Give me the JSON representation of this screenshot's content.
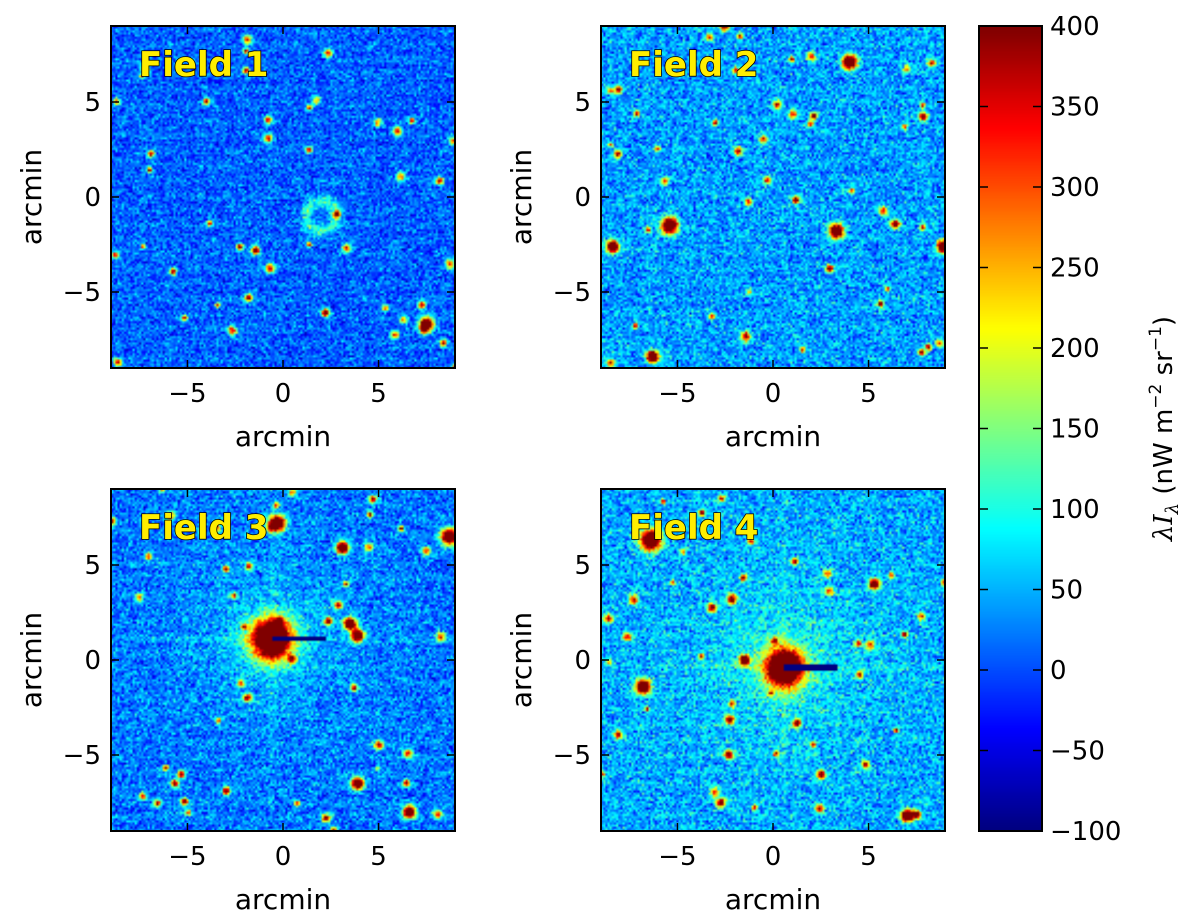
{
  "chart_data": [
    {
      "type": "heatmap",
      "title": "Field 1",
      "xlabel": "arcmin",
      "ylabel": "arcmin",
      "xlim": [
        -9,
        9
      ],
      "ylim": [
        -9,
        9
      ],
      "xticks": [
        -5,
        0,
        5
      ],
      "yticks": [
        -5,
        0,
        5
      ],
      "xtick_labels": [
        "−5",
        "0",
        "5"
      ],
      "ytick_labels": [
        "−5",
        "0",
        "5"
      ],
      "background_level": 10,
      "noise": 60,
      "bright_sources": [
        {
          "x": 2.0,
          "y": -1.0,
          "ring": true,
          "radius": 0.8,
          "peak": 110
        },
        {
          "x": 7.5,
          "y": -6.7,
          "peak": 400,
          "radius": 0.35
        }
      ]
    },
    {
      "type": "heatmap",
      "title": "Field 2",
      "xlabel": "arcmin",
      "ylabel": "arcmin",
      "xlim": [
        -9,
        9
      ],
      "ylim": [
        -9,
        9
      ],
      "xticks": [
        -5,
        0,
        5
      ],
      "yticks": [
        -5,
        0,
        5
      ],
      "xtick_labels": [
        "−5",
        "0",
        "5"
      ],
      "ytick_labels": [
        "−5",
        "0",
        "5"
      ],
      "background_level": 40,
      "noise": 70,
      "bright_sources": [
        {
          "x": 4.0,
          "y": 7.1,
          "peak": 400,
          "radius": 0.35
        },
        {
          "x": -5.4,
          "y": -1.5,
          "peak": 400,
          "radius": 0.4
        },
        {
          "x": 3.3,
          "y": -1.8,
          "peak": 400,
          "radius": 0.35
        },
        {
          "x": -8.4,
          "y": -2.6,
          "peak": 400,
          "radius": 0.3
        },
        {
          "x": 8.9,
          "y": -2.6,
          "peak": 400,
          "radius": 0.3
        },
        {
          "x": -6.3,
          "y": -8.4,
          "peak": 400,
          "radius": 0.3
        }
      ]
    },
    {
      "type": "heatmap",
      "title": "Field 3",
      "xlabel": "arcmin",
      "ylabel": "arcmin",
      "xlim": [
        -9,
        9
      ],
      "ylim": [
        -9,
        9
      ],
      "xticks": [
        -5,
        0,
        5
      ],
      "yticks": [
        -5,
        0,
        5
      ],
      "xtick_labels": [
        "−5",
        "0",
        "5"
      ],
      "ytick_labels": [
        "−5",
        "0",
        "5"
      ],
      "background_level": 20,
      "noise": 65,
      "bright_sources": [
        {
          "x": -0.6,
          "y": 1.1,
          "peak": 400,
          "radius": 1.0,
          "halo": 2.2,
          "streak": true
        },
        {
          "x": -0.3,
          "y": 7.2,
          "peak": 400,
          "radius": 0.4
        },
        {
          "x": 8.7,
          "y": 6.5,
          "peak": 400,
          "radius": 0.4
        },
        {
          "x": 3.1,
          "y": 5.9,
          "peak": 400,
          "radius": 0.3
        },
        {
          "x": 3.5,
          "y": 1.9,
          "peak": 400,
          "radius": 0.3
        },
        {
          "x": 3.9,
          "y": 1.3,
          "peak": 400,
          "radius": 0.3
        },
        {
          "x": 3.9,
          "y": -6.5,
          "peak": 400,
          "radius": 0.3
        },
        {
          "x": 6.6,
          "y": -8.0,
          "peak": 400,
          "radius": 0.3
        }
      ]
    },
    {
      "type": "heatmap",
      "title": "Field 4",
      "xlabel": "arcmin",
      "ylabel": "arcmin",
      "xlim": [
        -9,
        9
      ],
      "ylim": [
        -9,
        9
      ],
      "xticks": [
        -5,
        0,
        5
      ],
      "yticks": [
        -5,
        0,
        5
      ],
      "xtick_labels": [
        "−5",
        "0",
        "5"
      ],
      "ytick_labels": [
        "−5",
        "0",
        "5"
      ],
      "background_level": 45,
      "noise": 70,
      "bright_sources": [
        {
          "x": 0.6,
          "y": -0.4,
          "peak": 400,
          "radius": 0.9,
          "halo": 2.6,
          "streak": true
        },
        {
          "x": -6.4,
          "y": 6.3,
          "peak": 400,
          "radius": 0.5
        },
        {
          "x": -6.8,
          "y": -1.4,
          "peak": 400,
          "radius": 0.35
        },
        {
          "x": 7.0,
          "y": -8.2,
          "peak": 400,
          "radius": 0.3
        },
        {
          "x": -1.5,
          "y": 0.0,
          "peak": 400,
          "radius": 0.25
        },
        {
          "x": 5.3,
          "y": 4.0,
          "peak": 400,
          "radius": 0.25
        }
      ]
    }
  ],
  "colorbar": {
    "label": "λIλ (nW m⁻² sr⁻¹)",
    "label_prefix": "λI",
    "label_sub": "λ",
    "label_units": " (nW m",
    "label_exp1": "−2",
    "label_mid": " sr",
    "label_exp2": "−1",
    "label_close": ")",
    "min": -100,
    "max": 400,
    "ticks": [
      -100,
      -50,
      0,
      50,
      100,
      150,
      200,
      250,
      300,
      350,
      400
    ],
    "tick_labels": [
      "−100",
      "−50",
      "0",
      "50",
      "100",
      "150",
      "200",
      "250",
      "300",
      "350",
      "400"
    ],
    "colormap": "jet"
  }
}
